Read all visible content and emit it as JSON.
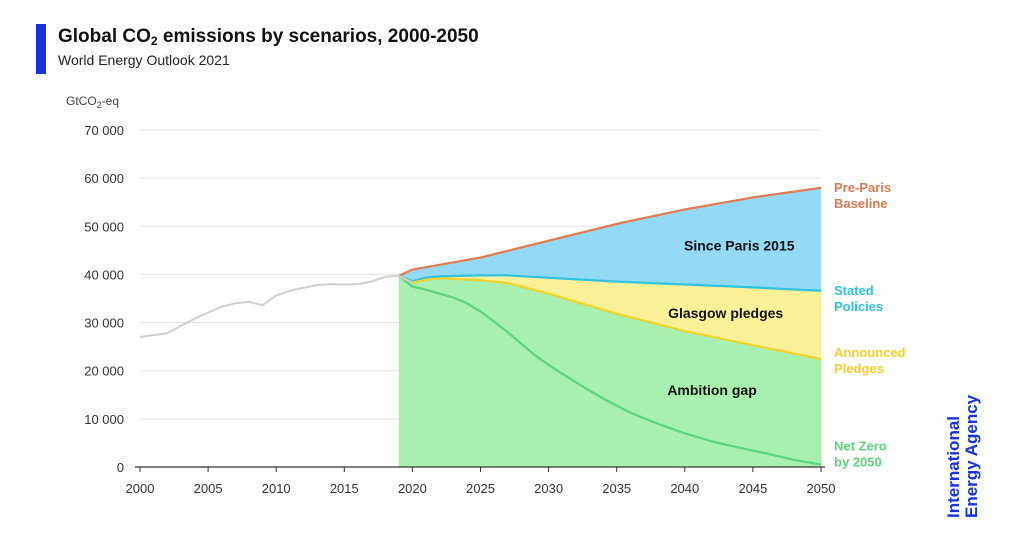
{
  "header": {
    "title_pre": "Global CO",
    "title_sub": "2",
    "title_post": " emissions by scenarios, 2000-2050",
    "subtitle": "World Energy Outlook 2021"
  },
  "brand": {
    "line1": "International",
    "line2": "Energy Agency",
    "color": "#1432e6"
  },
  "chart_data": {
    "type": "area",
    "unit_label_pre": "GtCO",
    "unit_label_sub": "2",
    "unit_label_post": "-eq",
    "xlim": [
      2000,
      2050
    ],
    "ylim": [
      0,
      70000
    ],
    "x_ticks": [
      {
        "value": 2000,
        "label": "2000"
      },
      {
        "value": 2005,
        "label": "2005"
      },
      {
        "value": 2010,
        "label": "2010"
      },
      {
        "value": 2015,
        "label": "2015"
      },
      {
        "value": 2020,
        "label": "2020"
      },
      {
        "value": 2025,
        "label": "2025"
      },
      {
        "value": 2030,
        "label": "2030"
      },
      {
        "value": 2035,
        "label": "2035"
      },
      {
        "value": 2040,
        "label": "2040"
      },
      {
        "value": 2045,
        "label": "2045"
      },
      {
        "value": 2050,
        "label": "2050"
      }
    ],
    "y_ticks": [
      {
        "value": 0,
        "label": "0"
      },
      {
        "value": 10000,
        "label": "10 000"
      },
      {
        "value": 20000,
        "label": "20 000"
      },
      {
        "value": 30000,
        "label": "30 000"
      },
      {
        "value": 40000,
        "label": "40 000"
      },
      {
        "value": 50000,
        "label": "50 000"
      },
      {
        "value": 60000,
        "label": "60 000"
      },
      {
        "value": 70000,
        "label": "70 000"
      }
    ],
    "grid": true,
    "history": {
      "color": "#cfcfcf",
      "x": [
        2000,
        2002,
        2003,
        2004,
        2005,
        2006,
        2007,
        2008,
        2009,
        2010,
        2011,
        2012,
        2013,
        2014,
        2015,
        2016,
        2017,
        2018,
        2019,
        2020
      ],
      "y": [
        27000,
        27800,
        29300,
        30800,
        32100,
        33300,
        34000,
        34300,
        33600,
        35600,
        36600,
        37200,
        37800,
        38000,
        37900,
        38000,
        38500,
        39500,
        39700,
        38200
      ]
    },
    "series": [
      {
        "name_lines": [
          "Pre-Paris",
          "Baseline"
        ],
        "color": "#e07b4f",
        "x": [
          2019,
          2020,
          2025,
          2030,
          2035,
          2040,
          2045,
          2050
        ],
        "y": [
          39700,
          41000,
          43500,
          47000,
          50500,
          53500,
          56000,
          58000
        ]
      },
      {
        "name_lines": [
          "Stated",
          "Policies"
        ],
        "color": "#2fc3e0",
        "x": [
          2019,
          2020,
          2021,
          2022,
          2025,
          2027,
          2030,
          2035,
          2040,
          2045,
          2050
        ],
        "y": [
          39700,
          38600,
          39300,
          39600,
          39800,
          39800,
          39300,
          38500,
          37900,
          37300,
          36600
        ]
      },
      {
        "name_lines": [
          "Announced",
          "Pledges"
        ],
        "color": "#f5d02a",
        "x": [
          2019,
          2020,
          2021,
          2022,
          2025,
          2027,
          2030,
          2035,
          2040,
          2045,
          2050
        ],
        "y": [
          39700,
          38300,
          38900,
          39200,
          38800,
          38200,
          36000,
          31800,
          28200,
          25300,
          22400
        ]
      },
      {
        "name_lines": [
          "Net Zero",
          "by 2050"
        ],
        "color": "#5cd67a",
        "x": [
          2019,
          2020,
          2021,
          2022,
          2023,
          2024,
          2025,
          2026,
          2027,
          2028,
          2029,
          2030,
          2032,
          2034,
          2036,
          2038,
          2040,
          2042,
          2044,
          2046,
          2048,
          2050
        ],
        "y": [
          39700,
          37500,
          36800,
          36000,
          35200,
          34000,
          32300,
          30200,
          28000,
          25600,
          23200,
          21200,
          17600,
          14200,
          11300,
          9000,
          7000,
          5300,
          4000,
          2800,
          1500,
          500
        ]
      }
    ],
    "band_fills": {
      "since_paris": "#93d9f8",
      "glasgow": "#fbf199",
      "ambition": "#a7f0ae"
    },
    "area_labels": {
      "since_paris": "Since Paris 2015",
      "glasgow": "Glasgow pledges",
      "ambition": "Ambition gap"
    }
  }
}
